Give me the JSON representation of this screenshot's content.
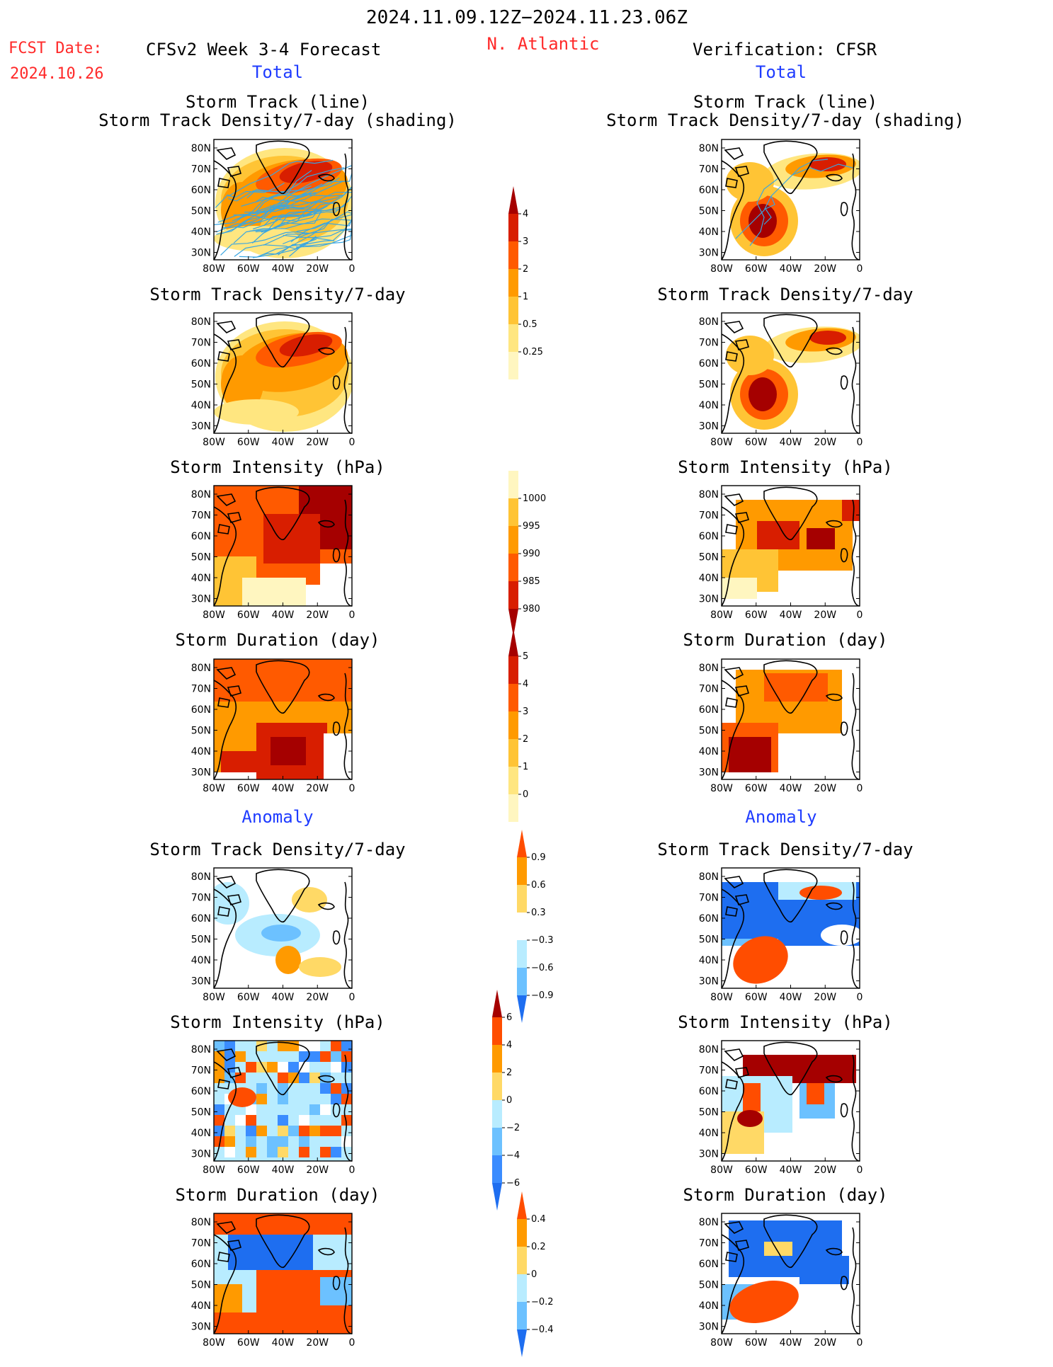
{
  "header": {
    "date_range": "2024.11.09.12Z−2024.11.23.06Z",
    "fcst_label": "FCST Date:",
    "fcst_date": "2024.10.26",
    "left_title": "CFSv2 Week 3-4 Forecast",
    "region": "N. Atlantic",
    "right_title": "Verification: CFSR"
  },
  "sections": {
    "total": "Total",
    "anomaly": "Anomaly"
  },
  "panel_titles": {
    "track_line": "Storm Track (line)",
    "track_density_shading": "Storm Track Density/7-day (shading)",
    "track_density": "Storm Track Density/7-day",
    "intensity": "Storm Intensity (hPa)",
    "duration": "Storm Duration (day)"
  },
  "axes": {
    "lat_ticks": [
      "80N",
      "70N",
      "60N",
      "50N",
      "40N",
      "30N"
    ],
    "lon_ticks": [
      "80W",
      "60W",
      "40W",
      "20W",
      "0"
    ]
  },
  "colorbars": {
    "track_density": {
      "labels": [
        "4",
        "3",
        "2",
        "1",
        "0.5",
        "0.25"
      ],
      "colors": [
        "#a50000",
        "#d81e00",
        "#ff5a00",
        "#ff9a00",
        "#ffc435",
        "#ffe680",
        "#fff6c0"
      ]
    },
    "intensity": {
      "labels": [
        "1000",
        "995",
        "990",
        "985",
        "980"
      ],
      "colors": [
        "#fff6c0",
        "#ffc435",
        "#ff9a00",
        "#ff5a00",
        "#d81e00",
        "#a50000"
      ]
    },
    "duration": {
      "labels": [
        "5",
        "4",
        "3",
        "2",
        "1",
        "0"
      ],
      "colors": [
        "#a50000",
        "#d81e00",
        "#ff5a00",
        "#ff9a00",
        "#ffc435",
        "#ffe680",
        "#fff6c0"
      ]
    },
    "anom_density": {
      "labels": [
        "0.9",
        "0.6",
        "0.3",
        "−0.3",
        "−0.6",
        "−0.9"
      ],
      "colors": [
        "#ff4d00",
        "#ff9a00",
        "#ffd966",
        "#ffffff",
        "#b8ecff",
        "#6cc1ff",
        "#1e6ef0"
      ]
    },
    "anom_intensity": {
      "labels": [
        "6",
        "4",
        "2",
        "0",
        "−2",
        "−4",
        "−6"
      ],
      "colors": [
        "#a50000",
        "#ff4d00",
        "#ff9a00",
        "#ffd966",
        "#b8ecff",
        "#6cc1ff",
        "#3a8cff",
        "#1e6ef0"
      ]
    },
    "anom_duration": {
      "labels": [
        "0.4",
        "0.2",
        "0",
        "−0.2",
        "−0.4"
      ],
      "colors": [
        "#ff4d00",
        "#ff9a00",
        "#ffd966",
        "#b8ecff",
        "#6cc1ff",
        "#1e6ef0"
      ]
    }
  }
}
